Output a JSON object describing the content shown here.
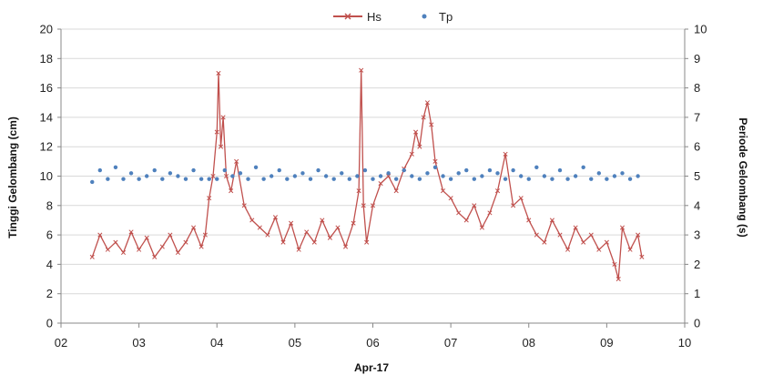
{
  "chart_data": {
    "type": "line",
    "xlabel": "Apr-17",
    "ylabel": "Tinggi Gelombang (cm)",
    "y2label": "Periode Gelombang (s)",
    "xlim": [
      2,
      10
    ],
    "ylim": [
      0,
      20
    ],
    "y2lim": [
      0,
      10
    ],
    "x_ticks": [
      2,
      3,
      4,
      5,
      6,
      7,
      8,
      9,
      10
    ],
    "x_tick_labels": [
      "02",
      "03",
      "04",
      "05",
      "06",
      "07",
      "08",
      "09",
      "10"
    ],
    "y_ticks": [
      0,
      2,
      4,
      6,
      8,
      10,
      12,
      14,
      16,
      18,
      20
    ],
    "y2_ticks": [
      0,
      1,
      2,
      3,
      4,
      5,
      6,
      7,
      8,
      9,
      10
    ],
    "grid": "horizontal",
    "legend_position": "top-center",
    "series": [
      {
        "name": "Hs",
        "axis": "left",
        "style": "line-with-x-markers",
        "color": "#C0504D",
        "x": [
          2.4,
          2.5,
          2.6,
          2.7,
          2.8,
          2.9,
          3.0,
          3.1,
          3.2,
          3.3,
          3.4,
          3.5,
          3.6,
          3.7,
          3.8,
          3.85,
          3.9,
          3.95,
          4.0,
          4.02,
          4.05,
          4.08,
          4.12,
          4.18,
          4.25,
          4.35,
          4.45,
          4.55,
          4.65,
          4.75,
          4.85,
          4.95,
          5.05,
          5.15,
          5.25,
          5.35,
          5.45,
          5.55,
          5.65,
          5.75,
          5.82,
          5.85,
          5.88,
          5.92,
          6.0,
          6.1,
          6.2,
          6.3,
          6.4,
          6.5,
          6.55,
          6.6,
          6.65,
          6.7,
          6.75,
          6.8,
          6.9,
          7.0,
          7.1,
          7.2,
          7.3,
          7.4,
          7.5,
          7.6,
          7.7,
          7.8,
          7.9,
          8.0,
          8.1,
          8.2,
          8.3,
          8.4,
          8.5,
          8.6,
          8.7,
          8.8,
          8.9,
          9.0,
          9.1,
          9.15,
          9.2,
          9.3,
          9.4,
          9.45
        ],
        "values": [
          4.5,
          6.0,
          5.0,
          5.5,
          4.8,
          6.2,
          5.0,
          5.8,
          4.5,
          5.2,
          6.0,
          4.8,
          5.5,
          6.5,
          5.2,
          6.0,
          8.5,
          10.0,
          13.0,
          17.0,
          12.0,
          14.0,
          10.0,
          9.0,
          11.0,
          8.0,
          7.0,
          6.5,
          6.0,
          7.2,
          5.5,
          6.8,
          5.0,
          6.2,
          5.5,
          7.0,
          5.8,
          6.5,
          5.2,
          6.8,
          9.0,
          17.2,
          8.0,
          5.5,
          8.0,
          9.5,
          10.0,
          9.0,
          10.5,
          11.5,
          13.0,
          12.0,
          14.0,
          15.0,
          13.5,
          11.0,
          9.0,
          8.5,
          7.5,
          7.0,
          8.0,
          6.5,
          7.5,
          9.0,
          11.5,
          8.0,
          8.5,
          7.0,
          6.0,
          5.5,
          7.0,
          6.0,
          5.0,
          6.5,
          5.5,
          6.0,
          5.0,
          5.5,
          4.0,
          3.0,
          6.5,
          5.0,
          6.0,
          4.5
        ]
      },
      {
        "name": "Tp",
        "axis": "right",
        "style": "markers",
        "color": "#4F81BD",
        "x": [
          2.4,
          2.5,
          2.6,
          2.7,
          2.8,
          2.9,
          3.0,
          3.1,
          3.2,
          3.3,
          3.4,
          3.5,
          3.6,
          3.7,
          3.8,
          3.9,
          4.0,
          4.1,
          4.2,
          4.3,
          4.4,
          4.5,
          4.6,
          4.7,
          4.8,
          4.9,
          5.0,
          5.1,
          5.2,
          5.3,
          5.4,
          5.5,
          5.6,
          5.7,
          5.8,
          5.9,
          6.0,
          6.1,
          6.2,
          6.3,
          6.4,
          6.5,
          6.6,
          6.7,
          6.8,
          6.9,
          7.0,
          7.1,
          7.2,
          7.3,
          7.4,
          7.5,
          7.6,
          7.7,
          7.8,
          7.9,
          8.0,
          8.1,
          8.2,
          8.3,
          8.4,
          8.5,
          8.6,
          8.7,
          8.8,
          8.9,
          9.0,
          9.1,
          9.2,
          9.3,
          9.4
        ],
        "values": [
          4.8,
          5.2,
          4.9,
          5.3,
          4.9,
          5.1,
          4.9,
          5.0,
          5.2,
          4.9,
          5.1,
          5.0,
          4.9,
          5.2,
          4.9,
          4.9,
          4.9,
          5.2,
          5.0,
          5.1,
          4.9,
          5.3,
          4.9,
          5.0,
          5.2,
          4.9,
          5.0,
          5.1,
          4.9,
          5.2,
          5.0,
          4.9,
          5.1,
          4.9,
          5.0,
          5.2,
          4.9,
          5.0,
          5.1,
          4.9,
          5.2,
          5.0,
          4.9,
          5.1,
          5.3,
          5.0,
          4.9,
          5.1,
          5.2,
          4.9,
          5.0,
          5.2,
          5.1,
          4.9,
          5.2,
          5.0,
          4.9,
          5.3,
          5.0,
          4.9,
          5.2,
          4.9,
          5.0,
          5.3,
          4.9,
          5.1,
          4.9,
          5.0,
          5.1,
          4.9,
          5.0
        ]
      }
    ]
  }
}
